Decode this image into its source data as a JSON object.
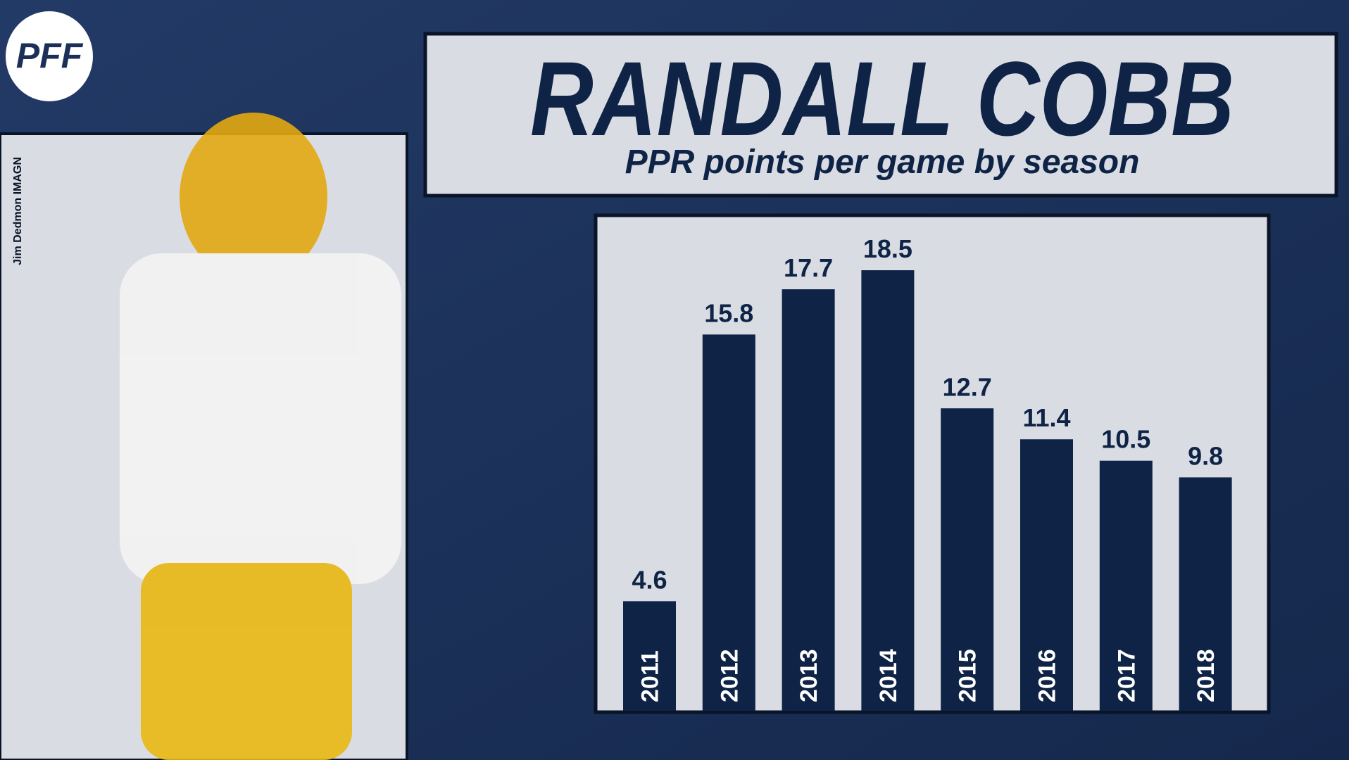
{
  "logo": "PFF",
  "photo_credit": "Jim Dedmon IMAGN",
  "chart_data": {
    "type": "bar",
    "title": "RANDALL COBB",
    "subtitle": "PPR points per game by season",
    "categories": [
      "2011",
      "2012",
      "2013",
      "2014",
      "2015",
      "2016",
      "2017",
      "2018"
    ],
    "values": [
      4.6,
      15.8,
      17.7,
      18.5,
      12.7,
      11.4,
      10.5,
      9.8
    ],
    "color": "#0e2345"
  }
}
